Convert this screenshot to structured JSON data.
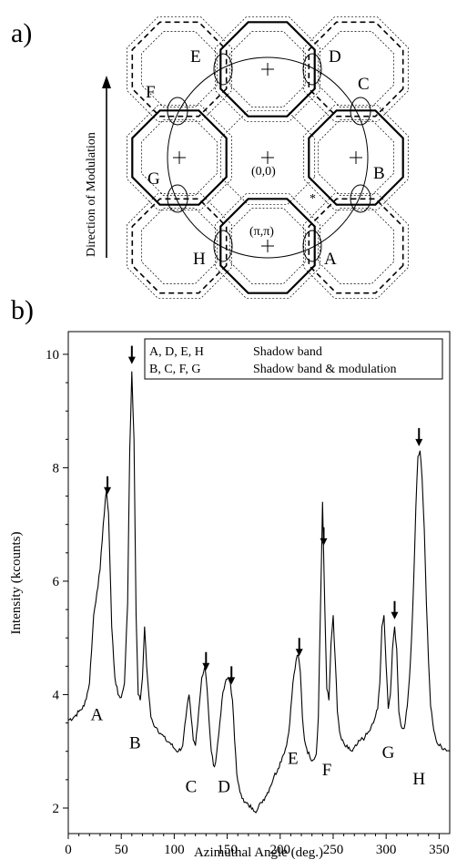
{
  "panel_a": {
    "label": "a)",
    "direction_label": "Direction of Modulation",
    "center_label": "(0,0)",
    "pipi_label": "(π,π)",
    "point_labels": [
      {
        "id": "A",
        "text": "A"
      },
      {
        "id": "B",
        "text": "B"
      },
      {
        "id": "C",
        "text": "C"
      },
      {
        "id": "D",
        "text": "D"
      },
      {
        "id": "E",
        "text": "E"
      },
      {
        "id": "F",
        "text": "F"
      },
      {
        "id": "G",
        "text": "G"
      },
      {
        "id": "H",
        "text": "H"
      }
    ]
  },
  "panel_b": {
    "label": "b)"
  },
  "chart_data": {
    "type": "line",
    "xlabel": "Azimuthal Angle (deg.)",
    "ylabel": "Intensity (kcounts)",
    "xlim": [
      0,
      360
    ],
    "ylim": [
      1.55,
      10.4
    ],
    "xticks": [
      0,
      50,
      100,
      150,
      200,
      250,
      300,
      350
    ],
    "yticks": [
      2,
      4,
      6,
      8,
      10
    ],
    "grid": false,
    "legend": {
      "placement": "top-right",
      "entries": [
        {
          "keys": "A, D, E, H",
          "desc": "Shadow band"
        },
        {
          "keys": "B, C, F, G",
          "desc": "Shadow band & modulation"
        }
      ]
    },
    "series": [
      {
        "x": [
          0,
          5,
          10,
          15,
          20,
          24,
          27,
          30,
          33,
          36,
          38,
          41,
          44,
          47,
          50,
          53,
          56,
          58,
          60,
          62,
          64,
          66,
          68,
          70,
          72,
          74,
          76,
          78,
          80,
          84,
          88,
          92,
          96,
          100,
          104,
          108,
          111,
          114,
          116,
          118,
          120,
          123,
          126,
          129,
          131,
          133,
          135,
          137,
          139,
          142,
          145,
          148,
          151,
          153,
          155,
          157,
          159,
          161,
          163,
          166,
          170,
          174,
          178,
          182,
          186,
          190,
          194,
          198,
          202,
          206,
          209,
          212,
          215,
          217,
          219,
          221,
          223,
          225,
          228,
          231,
          234,
          236,
          238,
          240,
          242,
          244,
          246,
          248,
          250,
          252,
          254,
          256,
          258,
          261,
          264,
          268,
          272,
          276,
          280,
          284,
          288,
          292,
          294,
          296,
          298,
          300,
          302,
          304,
          306,
          308,
          310,
          312,
          314,
          316,
          318,
          320,
          322,
          324,
          326,
          328,
          330,
          332,
          334,
          336,
          338,
          340,
          342,
          344,
          346,
          348,
          350,
          355,
          360
        ],
        "y": [
          3.55,
          3.6,
          3.7,
          3.8,
          4.2,
          5.4,
          5.8,
          6.2,
          7.0,
          7.6,
          7.2,
          5.2,
          4.3,
          4.0,
          3.95,
          4.2,
          5.6,
          8.3,
          9.7,
          8.5,
          5.4,
          4.0,
          3.9,
          4.3,
          5.2,
          4.5,
          4.0,
          3.6,
          3.5,
          3.4,
          3.3,
          3.2,
          3.15,
          3.05,
          3.0,
          3.1,
          3.6,
          4.0,
          3.6,
          3.2,
          3.1,
          3.7,
          4.3,
          4.5,
          4.1,
          3.5,
          3.0,
          2.75,
          2.8,
          3.3,
          3.9,
          4.2,
          4.3,
          4.2,
          3.9,
          3.2,
          2.6,
          2.4,
          2.25,
          2.1,
          2.05,
          2.0,
          1.95,
          2.1,
          2.2,
          2.35,
          2.55,
          2.7,
          2.9,
          3.1,
          3.5,
          4.2,
          4.6,
          4.7,
          4.4,
          3.6,
          3.2,
          3.05,
          2.9,
          2.85,
          2.95,
          3.6,
          5.5,
          7.4,
          5.6,
          4.1,
          3.9,
          4.9,
          5.4,
          4.6,
          3.7,
          3.35,
          3.2,
          3.1,
          3.05,
          3.0,
          3.1,
          3.2,
          3.25,
          3.35,
          3.5,
          3.75,
          4.2,
          5.2,
          5.4,
          4.5,
          3.75,
          4.0,
          4.8,
          5.2,
          4.8,
          3.7,
          3.45,
          3.4,
          3.5,
          3.8,
          4.3,
          5.0,
          6.0,
          7.3,
          8.2,
          8.3,
          7.8,
          6.9,
          5.6,
          4.6,
          3.8,
          3.5,
          3.3,
          3.15,
          3.1,
          3.05,
          3.0
        ]
      }
    ],
    "arrows_at": [
      37,
      60,
      130,
      154,
      218,
      241,
      308,
      331
    ],
    "curve_labels": [
      {
        "text": "A",
        "x": 27,
        "y": 3.55
      },
      {
        "text": "B",
        "x": 63,
        "y": 3.05
      },
      {
        "text": "C",
        "x": 116,
        "y": 2.28
      },
      {
        "text": "D",
        "x": 147,
        "y": 2.28
      },
      {
        "text": "E",
        "x": 212,
        "y": 2.78
      },
      {
        "text": "F",
        "x": 244,
        "y": 2.58
      },
      {
        "text": "G",
        "x": 302,
        "y": 2.88
      },
      {
        "text": "H",
        "x": 331,
        "y": 2.42
      }
    ]
  }
}
